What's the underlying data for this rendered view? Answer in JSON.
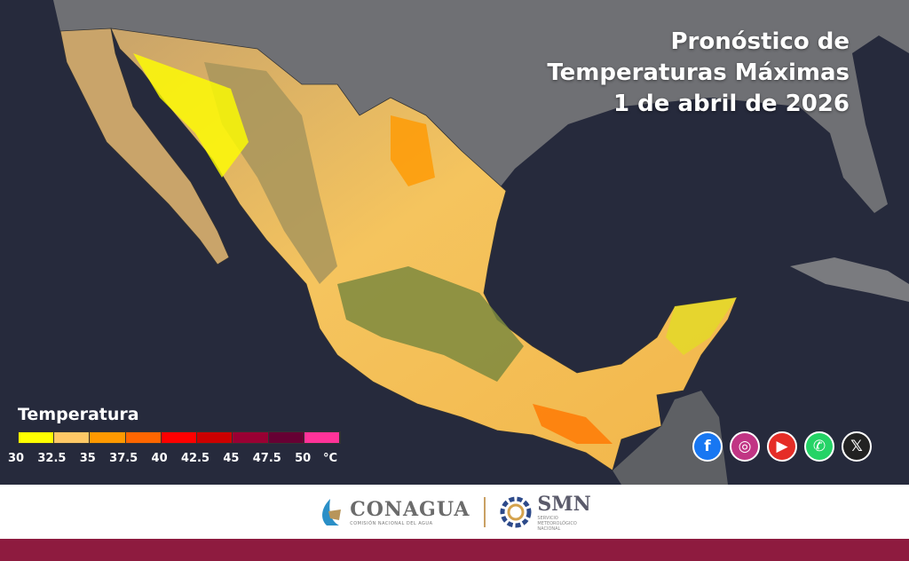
{
  "title": {
    "line1": "Pronóstico de",
    "line2": "Temperaturas Máximas",
    "line3": "1 de abril de 2026"
  },
  "legend": {
    "title": "Temperatura",
    "unit": "°C",
    "ticks": [
      "30",
      "32.5",
      "35",
      "37.5",
      "40",
      "42.5",
      "45",
      "47.5",
      "50"
    ],
    "colors": [
      "#ffff00",
      "#ffc966",
      "#ff9900",
      "#ff6600",
      "#ff0000",
      "#cc0000",
      "#990033",
      "#660033",
      "#ff3399"
    ]
  },
  "social": [
    {
      "icon": "facebook-icon",
      "glyph": "f",
      "color": "#1877f2"
    },
    {
      "icon": "instagram-icon",
      "glyph": "◎",
      "color": "#c13584"
    },
    {
      "icon": "youtube-icon",
      "glyph": "▶",
      "color": "#e52d27"
    },
    {
      "icon": "whatsapp-icon",
      "glyph": "✆",
      "color": "#25d366"
    },
    {
      "icon": "x-icon",
      "glyph": "𝕏",
      "color": "#222222"
    }
  ],
  "footer": {
    "conagua": "CONAGUA",
    "conagua_sub": "COMISIÓN NACIONAL DEL AGUA",
    "smn": "SMN",
    "smn_sub1": "SERVICIO",
    "smn_sub2": "METEOROLÓGICO",
    "smn_sub3": "NACIONAL",
    "band_color": "#8e1b3f"
  }
}
